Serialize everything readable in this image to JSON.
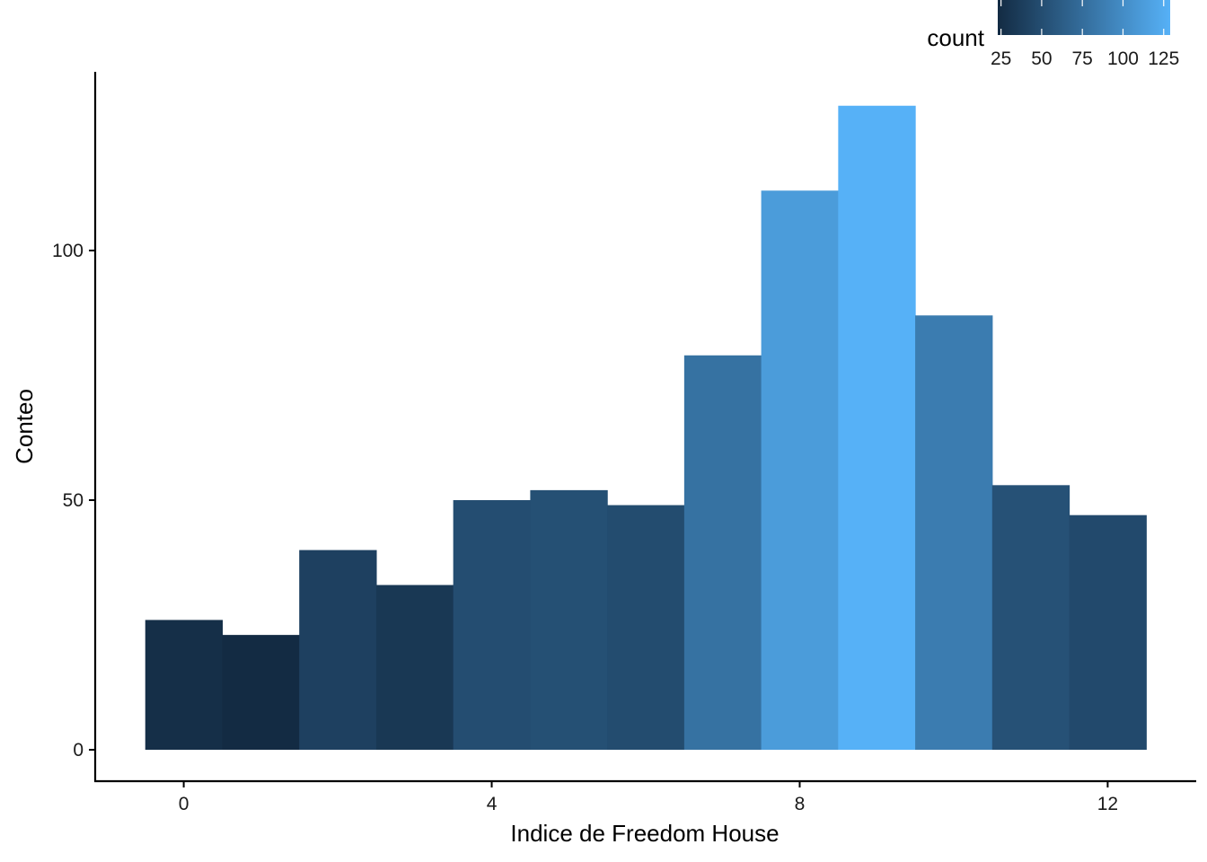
{
  "chart_data": {
    "type": "bar",
    "title": "",
    "xlabel": "Indice de Freedom House",
    "ylabel": "Conteo",
    "bin_width": 1,
    "x": [
      0,
      1,
      2,
      3,
      4,
      5,
      6,
      7,
      8,
      9,
      10,
      11,
      12
    ],
    "values": [
      26,
      23,
      40,
      33,
      50,
      52,
      49,
      79,
      112,
      129,
      87,
      53,
      47
    ],
    "xlim": [
      -1.15,
      13.15
    ],
    "ylim": [
      0,
      134
    ],
    "x_ticks": [
      0,
      4,
      8,
      12
    ],
    "x_tick_labels": [
      "0",
      "4",
      "8",
      "12"
    ],
    "y_ticks": [
      0,
      50,
      100
    ],
    "y_tick_labels": [
      "0",
      "50",
      "100"
    ],
    "grid": false,
    "fill_scale": {
      "variable": "count",
      "low_color": "#132B43",
      "high_color": "#56B1F7",
      "range": [
        23,
        129
      ]
    },
    "legend": {
      "title": "count",
      "position": "top-right",
      "breaks": [
        25,
        50,
        75,
        100,
        125
      ],
      "break_labels": [
        "25",
        "50",
        "75",
        "100",
        "125"
      ]
    }
  }
}
